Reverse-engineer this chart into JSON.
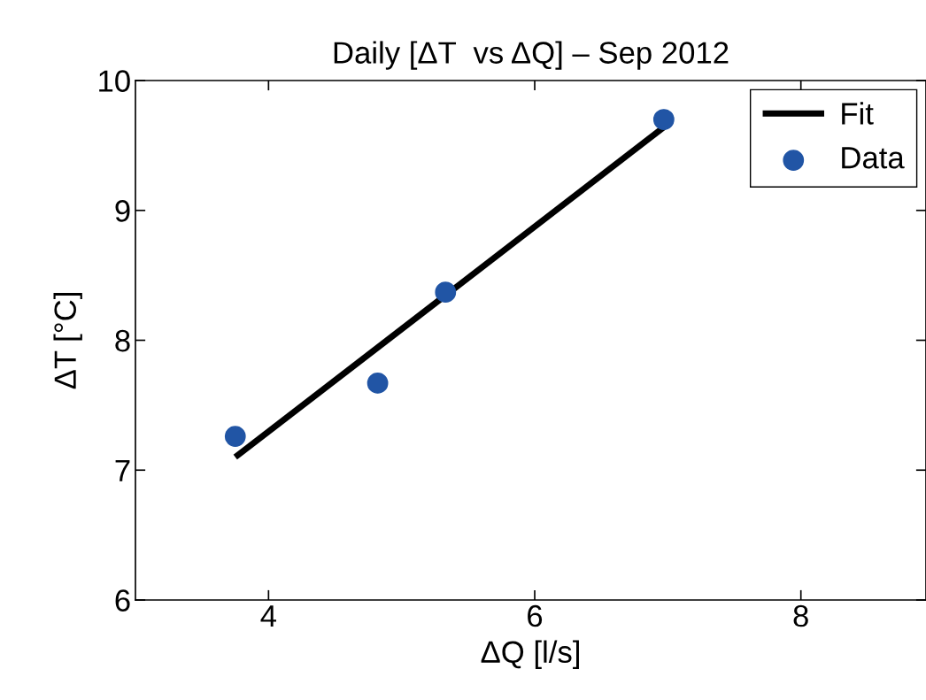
{
  "chart_data": {
    "type": "scatter",
    "title": "Daily [ΔT  vs ΔQ] – Sep 2012",
    "xlabel": "ΔQ [l/s]",
    "ylabel": "ΔT [°C]",
    "xlim": [
      3,
      8.94
    ],
    "xticks": [
      4,
      6,
      8
    ],
    "ylim": [
      6,
      10
    ],
    "yticks": [
      6,
      7,
      8,
      9,
      10
    ],
    "grid": false,
    "legend": "top right",
    "series": [
      {
        "name": "Fit",
        "type": "line",
        "color": "#000000",
        "x": [
          3.75,
          6.97
        ],
        "values": [
          7.1,
          9.64
        ],
        "line_style": "solid",
        "marker": "none"
      },
      {
        "name": "Data",
        "color": "#2155a5",
        "x": [
          3.75,
          4.82,
          5.33,
          6.97
        ],
        "values": [
          7.26,
          7.67,
          8.37,
          9.7
        ],
        "marker": "circle"
      }
    ]
  }
}
